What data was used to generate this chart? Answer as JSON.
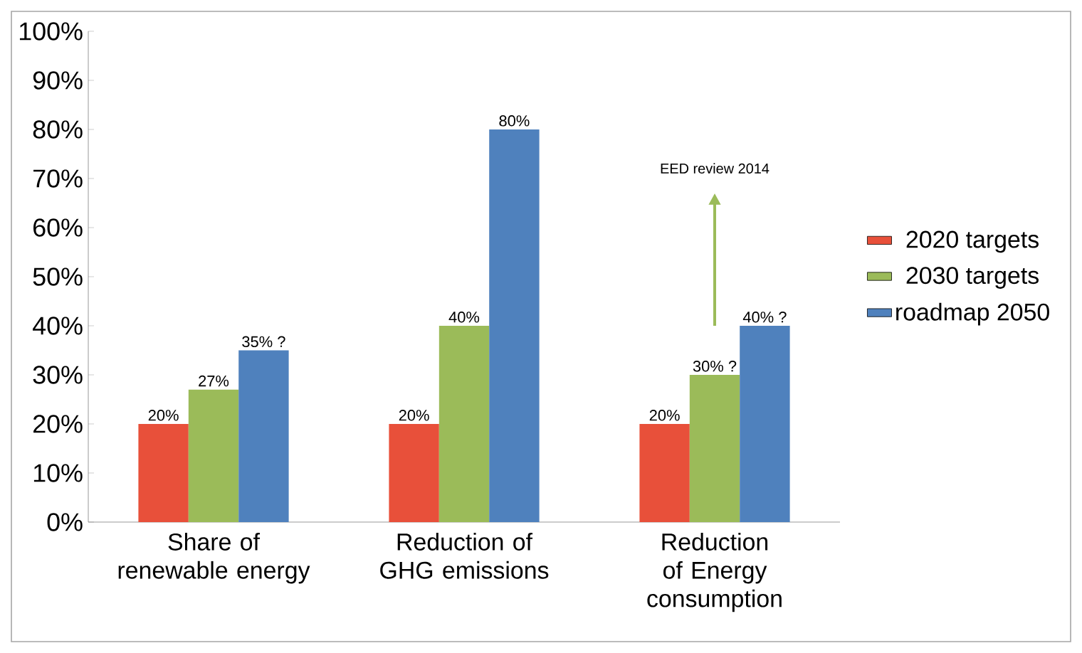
{
  "chart_data": {
    "type": "bar",
    "categories": [
      "Share of renewable energy",
      "Reduction of GHG emissions",
      "Reduction of Energy consumption"
    ],
    "series": [
      {
        "name": "2020 targets",
        "color": "#e8503a",
        "values": [
          20,
          20,
          20
        ],
        "value_labels": [
          "20%",
          "20%",
          "20%"
        ]
      },
      {
        "name": "2030 targets",
        "color": "#9bbb59",
        "values": [
          27,
          40,
          30
        ],
        "value_labels": [
          "27%",
          "40%",
          "30% ?"
        ]
      },
      {
        "name": "roadmap 2050",
        "color": "#4f81bd",
        "values": [
          35,
          80,
          40
        ],
        "value_labels": [
          "35% ?",
          "80%",
          "40% ?"
        ]
      }
    ],
    "ylim": [
      0,
      100
    ],
    "yticks": [
      {
        "value": 0,
        "label": "0%"
      },
      {
        "value": 10,
        "label": "10%"
      },
      {
        "value": 20,
        "label": "20%"
      },
      {
        "value": 30,
        "label": "30%"
      },
      {
        "value": 40,
        "label": "40%"
      },
      {
        "value": 50,
        "label": "50%"
      },
      {
        "value": 60,
        "label": "60%"
      },
      {
        "value": 70,
        "label": "70%"
      },
      {
        "value": 80,
        "label": "80%"
      },
      {
        "value": 90,
        "label": "90%"
      },
      {
        "value": 100,
        "label": "100%"
      }
    ],
    "annotations": [
      "EED review 2014"
    ],
    "legend": "right",
    "grid": false
  }
}
